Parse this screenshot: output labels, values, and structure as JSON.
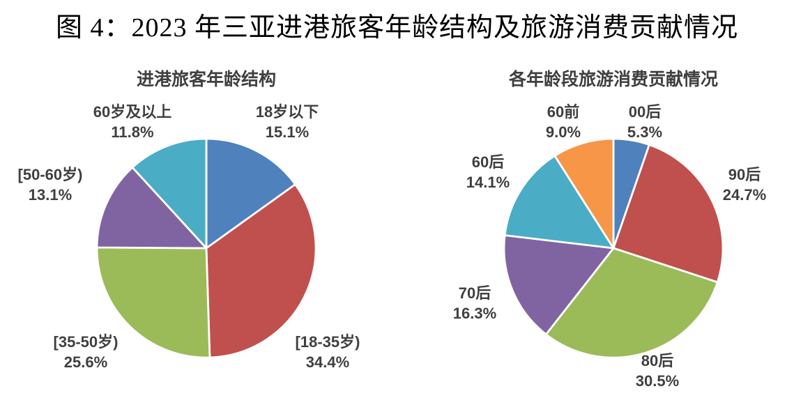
{
  "page": {
    "title": "图 4：2023 年三亚进港旅客年龄结构及旅游消费贡献情况"
  },
  "colors": {
    "label_text": "#3F3F3F",
    "title_text": "#000000",
    "slice_border": "#FFFFFF"
  },
  "chart_data": [
    {
      "type": "pie",
      "title": "进港旅客年龄结构",
      "start_angle_deg": 0,
      "direction": "clockwise",
      "legend_position": "none",
      "slices": [
        {
          "label": "18岁以下",
          "value": 15.1,
          "pct_text": "15.1%",
          "color": "#4F81BD"
        },
        {
          "label": "[18-35岁)",
          "value": 34.4,
          "pct_text": "34.4%",
          "color": "#C0504D"
        },
        {
          "label": "[35-50岁)",
          "value": 25.6,
          "pct_text": "25.6%",
          "color": "#9BBB59"
        },
        {
          "label": "[50-60岁)",
          "value": 13.1,
          "pct_text": "13.1%",
          "color": "#8064A2"
        },
        {
          "label": "60岁及以上",
          "value": 11.8,
          "pct_text": "11.8%",
          "color": "#4BACC6"
        }
      ]
    },
    {
      "type": "pie",
      "title": "各年龄段旅游消费贡献情况",
      "start_angle_deg": 0,
      "direction": "clockwise",
      "legend_position": "none",
      "slices": [
        {
          "label": "00后",
          "value": 5.3,
          "pct_text": "5.3%",
          "color": "#4F81BD"
        },
        {
          "label": "90后",
          "value": 24.7,
          "pct_text": "24.7%",
          "color": "#C0504D"
        },
        {
          "label": "80后",
          "value": 30.5,
          "pct_text": "30.5%",
          "color": "#9BBB59"
        },
        {
          "label": "70后",
          "value": 16.3,
          "pct_text": "16.3%",
          "color": "#8064A2"
        },
        {
          "label": "60后",
          "value": 14.1,
          "pct_text": "14.1%",
          "color": "#4BACC6"
        },
        {
          "label": "60前",
          "value": 9.0,
          "pct_text": "9.0%",
          "color": "#F79646"
        }
      ]
    }
  ]
}
